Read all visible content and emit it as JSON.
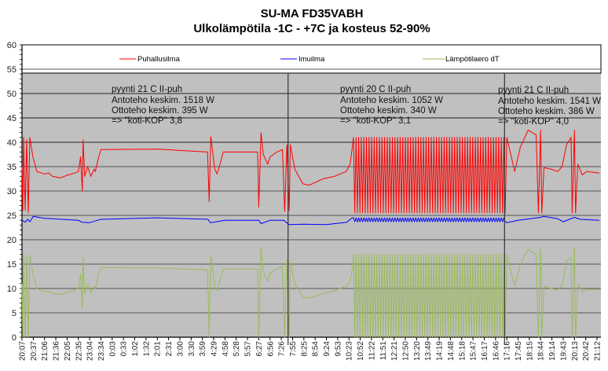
{
  "chart_data": {
    "type": "line",
    "title": "SU-MA FD35VABH",
    "subtitle": "Ulkolämpötila -1C - +7C ja kosteus 52-90%",
    "xlabel": "",
    "ylabel": "",
    "ylim": [
      0,
      60
    ],
    "yticks": [
      0,
      5,
      10,
      15,
      20,
      25,
      30,
      35,
      40,
      45,
      50,
      55,
      60
    ],
    "grid": true,
    "legend_placement": "top",
    "categories": [
      "20:07",
      "20:37",
      "21:06",
      "21:36",
      "22:05",
      "22:35",
      "23:04",
      "23:34",
      "0:03",
      "0:33",
      "1:02",
      "1:32",
      "2:01",
      "2:31",
      "3:00",
      "3:30",
      "3:59",
      "4:29",
      "4:58",
      "5:28",
      "5:57",
      "6:27",
      "6:56",
      "7:26",
      "7:55",
      "8:25",
      "8:54",
      "9:24",
      "9:53",
      "10:23",
      "10:52",
      "11:22",
      "11:51",
      "12:21",
      "12:50",
      "13:20",
      "13:49",
      "14:19",
      "14:48",
      "15:18",
      "15:47",
      "16:17",
      "16:46",
      "17:16",
      "17:45",
      "18:15",
      "18:44",
      "19:14",
      "19:43",
      "20:13",
      "20:42",
      "21:12"
    ],
    "x_unit": "category index",
    "dividers": [
      23.6,
      42.8
    ],
    "series": [
      {
        "name": "Puhallusilma",
        "color": "#ff0000",
        "points": [
          [
            0,
            35
          ],
          [
            0.07,
            26
          ],
          [
            0.14,
            41
          ],
          [
            0.28,
            26
          ],
          [
            0.42,
            40.5
          ],
          [
            0.56,
            25.5
          ],
          [
            0.7,
            41
          ],
          [
            0.97,
            37
          ],
          [
            1.32,
            34
          ],
          [
            2.0,
            33.5
          ],
          [
            2.36,
            33.7
          ],
          [
            2.7,
            33
          ],
          [
            3.4,
            32.7
          ],
          [
            4.1,
            33.3
          ],
          [
            4.58,
            33.6
          ],
          [
            5.0,
            34
          ],
          [
            5.2,
            37
          ],
          [
            5.35,
            30
          ],
          [
            5.42,
            40.5
          ],
          [
            5.56,
            33
          ],
          [
            5.83,
            35
          ],
          [
            6.1,
            33
          ],
          [
            6.4,
            34.5
          ],
          [
            6.5,
            34
          ],
          [
            6.8,
            37
          ],
          [
            7.0,
            38.5
          ],
          [
            12.1,
            38.6
          ],
          [
            16.46,
            38
          ],
          [
            16.6,
            27.8
          ],
          [
            16.74,
            41.2
          ],
          [
            17.1,
            34.5
          ],
          [
            17.3,
            33.5
          ],
          [
            17.5,
            35
          ],
          [
            17.85,
            38
          ],
          [
            20.9,
            38
          ],
          [
            21.0,
            26.7
          ],
          [
            21.2,
            42
          ],
          [
            21.4,
            37.5
          ],
          [
            21.8,
            35.5
          ],
          [
            22.0,
            37
          ],
          [
            22.6,
            38
          ],
          [
            23.1,
            38.5
          ],
          [
            23.3,
            25.8
          ],
          [
            23.5,
            39.5
          ],
          [
            23.7,
            26
          ],
          [
            23.8,
            39.5
          ],
          [
            24.2,
            34.5
          ],
          [
            24.9,
            31.5
          ],
          [
            25.5,
            31.2
          ],
          [
            26.7,
            32.5
          ],
          [
            27.7,
            33
          ],
          [
            28.75,
            34
          ],
          [
            29.1,
            35.5
          ],
          [
            29.3,
            39
          ]
        ],
        "oscillation": {
          "from": 29.4,
          "to": 42.9,
          "period": 0.23,
          "high": 41,
          "low": 25.5
        },
        "points_after": [
          [
            43.0,
            41
          ],
          [
            43.7,
            34
          ],
          [
            44.2,
            39
          ],
          [
            44.9,
            42.5
          ],
          [
            45.6,
            41.5
          ],
          [
            45.8,
            25.5
          ],
          [
            46.0,
            42.5
          ],
          [
            46.1,
            25.5
          ],
          [
            46.3,
            34.8
          ],
          [
            46.9,
            34.5
          ],
          [
            47.5,
            34
          ],
          [
            47.9,
            35
          ],
          [
            48.3,
            39.5
          ],
          [
            48.7,
            41
          ],
          [
            48.8,
            25.5
          ],
          [
            49.0,
            42.5
          ],
          [
            49.1,
            25.5
          ],
          [
            49.3,
            35.5
          ],
          [
            49.7,
            33.3
          ],
          [
            50.1,
            34
          ],
          [
            51.2,
            33.7
          ]
        ]
      },
      {
        "name": "Imuilma",
        "color": "#0000ff",
        "points": [
          [
            0,
            24
          ],
          [
            0.3,
            23.6
          ],
          [
            0.5,
            24.2
          ],
          [
            0.7,
            23.7
          ],
          [
            1,
            24.8
          ],
          [
            2,
            24.4
          ],
          [
            5,
            24
          ],
          [
            5.3,
            23.6
          ],
          [
            6,
            23.5
          ],
          [
            7,
            24.2
          ],
          [
            12,
            24.5
          ],
          [
            16.5,
            24.2
          ],
          [
            16.7,
            23.5
          ],
          [
            17,
            23.6
          ],
          [
            18,
            24
          ],
          [
            21,
            24
          ],
          [
            21.2,
            23.3
          ],
          [
            22,
            24
          ],
          [
            23.2,
            24
          ],
          [
            23.7,
            23.1
          ],
          [
            25,
            23.2
          ],
          [
            27,
            23.1
          ],
          [
            28.8,
            23.6
          ],
          [
            29.3,
            24.5
          ]
        ],
        "oscillation": {
          "from": 29.4,
          "to": 42.9,
          "period": 0.23,
          "high": 24.5,
          "low": 23.7
        },
        "points_after": [
          [
            43.0,
            23.5
          ],
          [
            44,
            24
          ],
          [
            46,
            24.6
          ],
          [
            46.3,
            24.8
          ],
          [
            47.5,
            24.3
          ],
          [
            48,
            23.7
          ],
          [
            49,
            24.6
          ],
          [
            49.5,
            24.2
          ],
          [
            51.2,
            24
          ]
        ]
      },
      {
        "name": "Lämpötilaero dT",
        "color": "#9bbb59",
        "points": [
          [
            0,
            11
          ],
          [
            0.07,
            0
          ],
          [
            0.14,
            17
          ],
          [
            0.28,
            0
          ],
          [
            0.42,
            16.5
          ],
          [
            0.56,
            0
          ],
          [
            0.7,
            17
          ],
          [
            0.97,
            13
          ],
          [
            1.32,
            10
          ],
          [
            2.0,
            9.3
          ],
          [
            2.36,
            9.5
          ],
          [
            2.7,
            9
          ],
          [
            3.4,
            8.8
          ],
          [
            4.1,
            9.3
          ],
          [
            4.58,
            9.6
          ],
          [
            5.0,
            10
          ],
          [
            5.2,
            13
          ],
          [
            5.35,
            6
          ],
          [
            5.42,
            16.5
          ],
          [
            5.56,
            9
          ],
          [
            5.83,
            11
          ],
          [
            6.1,
            9
          ],
          [
            6.4,
            10.5
          ],
          [
            6.5,
            10
          ],
          [
            6.8,
            13
          ],
          [
            7.0,
            14.3
          ],
          [
            12.1,
            14.2
          ],
          [
            16.46,
            13.8
          ],
          [
            16.6,
            0
          ],
          [
            16.74,
            16.8
          ],
          [
            17.1,
            10.5
          ],
          [
            17.3,
            9.5
          ],
          [
            17.5,
            11
          ],
          [
            17.85,
            14
          ],
          [
            20.9,
            14
          ],
          [
            21.0,
            0
          ],
          [
            21.2,
            18.5
          ],
          [
            21.4,
            13.5
          ],
          [
            21.8,
            11.5
          ],
          [
            22.0,
            13
          ],
          [
            22.6,
            14
          ],
          [
            23.1,
            14.5
          ],
          [
            23.3,
            0
          ],
          [
            23.5,
            16
          ],
          [
            23.7,
            0
          ],
          [
            23.8,
            15.5
          ],
          [
            24.2,
            11
          ],
          [
            24.9,
            8.3
          ],
          [
            25.5,
            8
          ],
          [
            26.7,
            9
          ],
          [
            27.7,
            9.5
          ],
          [
            28.75,
            10.5
          ],
          [
            29.1,
            11.5
          ],
          [
            29.3,
            14
          ]
        ],
        "oscillation": {
          "from": 29.4,
          "to": 42.9,
          "period": 0.23,
          "high": 17,
          "low": 0
        },
        "points_after": [
          [
            43.0,
            17
          ],
          [
            43.7,
            10.5
          ],
          [
            44.2,
            15
          ],
          [
            44.9,
            18
          ],
          [
            45.6,
            17
          ],
          [
            45.8,
            0
          ],
          [
            46.0,
            18.5
          ],
          [
            46.1,
            0
          ],
          [
            46.3,
            10.5
          ],
          [
            46.9,
            10
          ],
          [
            47.5,
            9.7
          ],
          [
            47.9,
            10.5
          ],
          [
            48.3,
            15.5
          ],
          [
            48.7,
            16.5
          ],
          [
            48.8,
            0
          ],
          [
            49.0,
            18.5
          ],
          [
            49.1,
            0
          ],
          [
            49.3,
            11
          ],
          [
            49.7,
            9.3
          ],
          [
            50.1,
            9.8
          ],
          [
            51.2,
            9.8
          ]
        ]
      }
    ],
    "annotations": [
      {
        "lines": [
          "pyynti 21 C II-puh",
          "Antoteho keskim. 1518 W",
          "Ottoteho keskim. 395 W",
          "=> \"koti-KOP\"  3,8"
        ]
      },
      {
        "lines": [
          "pyynti 20 C II-puh",
          "Antoteho keskim. 1052 W",
          "Ottoteho keskim. 340 W",
          "=> \"koti-KOP\"  3,1"
        ]
      },
      {
        "lines": [
          "pyynti 21 C II-puh",
          "Antoteho keskim. 1541 W",
          "Ottoteho keskim. 386 W",
          "=> \"koti-KOP\" 4,0"
        ]
      }
    ]
  }
}
